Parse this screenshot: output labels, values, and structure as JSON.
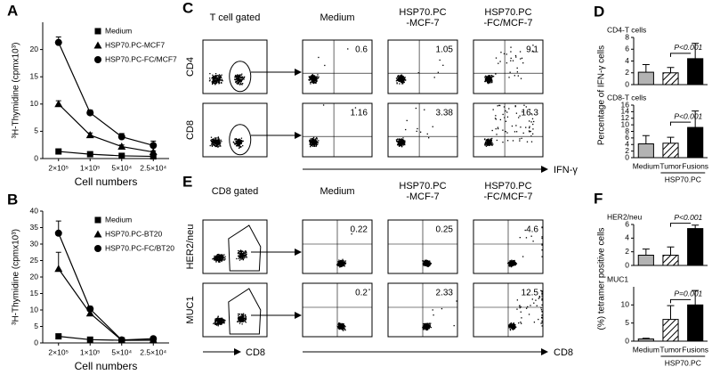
{
  "chart_data": [
    {
      "type": "line",
      "panel": "A",
      "ylabel": "³H-Thymidine (cpmx10³)",
      "xlabel": "Cell numbers",
      "categories": [
        "2×10⁵",
        "1×10⁵",
        "5×10⁴",
        "2.5×10⁴"
      ],
      "ylim": [
        0,
        25
      ],
      "yticks": [
        0,
        5,
        10,
        15,
        20
      ],
      "legend": "upper right",
      "series": [
        {
          "name": "Medium",
          "color": "#000000",
          "marker": "square",
          "values": [
            1.3,
            0.8,
            0.5,
            0.4
          ],
          "errors": [
            0.2,
            0.1,
            0.1,
            0.1
          ]
        },
        {
          "name": "HSP70.PC-MCF7",
          "color": "#000000",
          "marker": "triangle",
          "values": [
            10,
            4.3,
            2.2,
            1.2
          ],
          "errors": [
            0.6,
            0.4,
            0.3,
            0.2
          ]
        },
        {
          "name": "HSP70.PC-FC/MCF7",
          "color": "#000000",
          "marker": "circle",
          "values": [
            21.3,
            8.4,
            4,
            2.4
          ],
          "errors": [
            1,
            0.5,
            0.6,
            0.8
          ]
        }
      ]
    },
    {
      "type": "line",
      "panel": "B",
      "ylabel": "³H-Thymidine (cpmx10³)",
      "xlabel": "Cell numbers",
      "categories": [
        "2×10⁵",
        "1×10⁵",
        "5×10⁴",
        "2.5×10⁴"
      ],
      "ylim": [
        0,
        40
      ],
      "yticks": [
        0,
        5,
        10,
        15,
        20,
        25,
        30,
        35,
        40
      ],
      "legend": "upper right",
      "series": [
        {
          "name": "Medium",
          "color": "#000000",
          "marker": "square",
          "values": [
            2,
            1,
            0.8,
            0.8
          ],
          "errors": [
            0.3,
            0.1,
            0.1,
            0.1
          ]
        },
        {
          "name": "HSP70.PC-BT20",
          "color": "#000000",
          "marker": "triangle",
          "values": [
            22.5,
            9,
            0.8,
            0.9
          ],
          "errors": [
            5,
            1.2,
            0.2,
            0.2
          ]
        },
        {
          "name": "HSP70.PC-FC/BT20",
          "color": "#000000",
          "marker": "circle",
          "values": [
            33.3,
            10.3,
            0.9,
            1.3
          ],
          "errors": [
            3.7,
            0.8,
            0.2,
            0.3
          ]
        }
      ]
    },
    {
      "type": "bar",
      "panel": "D",
      "title": "CD4-T cells",
      "ylim": [
        0,
        8
      ],
      "yticks": [
        0,
        2,
        4,
        6,
        8
      ],
      "values": [
        2.1,
        2,
        4.4
      ],
      "errors": [
        1.3,
        0.9,
        2.6
      ],
      "colors": [
        "#b3b3b3",
        "#ffffff",
        "#000000"
      ],
      "patterns": [
        "solid",
        "hatched",
        "solid"
      ],
      "annotation": "P<0.001"
    },
    {
      "type": "bar",
      "title": "CD8-T cells",
      "ylabel": "Percentage of IFN-γ cells",
      "ylim": [
        0,
        16
      ],
      "yticks": [
        0,
        2,
        4,
        6,
        8,
        10,
        12,
        14,
        16
      ],
      "categories": [
        "Medium",
        "Tumor",
        "Fusions"
      ],
      "group_label": "HSP70.PC",
      "values": [
        4.2,
        4.4,
        9.2
      ],
      "errors": [
        2.5,
        1.8,
        5
      ],
      "colors": [
        "#b3b3b3",
        "#ffffff",
        "#000000"
      ],
      "patterns": [
        "solid",
        "hatched",
        "solid"
      ],
      "annotation": "P<0.001"
    },
    {
      "type": "bar",
      "panel": "F",
      "title": "HER2/neu",
      "ylim": [
        0,
        6
      ],
      "yticks": [
        0,
        2,
        4,
        6
      ],
      "values": [
        1.5,
        1.5,
        5.4
      ],
      "errors": [
        0.9,
        1.2,
        0.5
      ],
      "colors": [
        "#b3b3b3",
        "#ffffff",
        "#000000"
      ],
      "patterns": [
        "solid",
        "hatched",
        "solid"
      ],
      "annotation": "P<0.001"
    },
    {
      "type": "bar",
      "title": "MUC1",
      "ylabel": "(%) tetramer positive cells",
      "ylim": [
        0,
        15
      ],
      "yticks": [
        0,
        5,
        10
      ],
      "categories": [
        "Medium",
        "Tumor",
        "Fusions"
      ],
      "group_label": "HSP70.PC",
      "values": [
        0.6,
        6,
        10
      ],
      "errors": [
        0.2,
        3.8,
        4
      ],
      "colors": [
        "#b3b3b3",
        "#ffffff",
        "#000000"
      ],
      "patterns": [
        "solid",
        "hatched",
        "solid"
      ],
      "annotation": "P=0.001"
    }
  ],
  "flow_panels": [
    {
      "panel": "C",
      "gate_label": "T cell gated",
      "x_label": "IFN-γ",
      "columns": [
        [
          "Medium"
        ],
        [
          "HSP70.PC",
          "-MCF-7"
        ],
        [
          "HSP70.PC",
          "-FC/MCF-7"
        ]
      ],
      "rows": [
        {
          "label": "CD4",
          "values": [
            0.6,
            1.05,
            9.1
          ]
        },
        {
          "label": "CD8",
          "values": [
            1.16,
            3.38,
            16.3
          ]
        }
      ]
    },
    {
      "panel": "E",
      "gate_label": "CD8 gated",
      "gate_x_label": "CD8",
      "x_label": "CD8",
      "columns": [
        [
          "Medium"
        ],
        [
          "HSP70.PC",
          "-MCF-7"
        ],
        [
          "HSP70.PC",
          "-FC/MCF-7"
        ]
      ],
      "rows": [
        {
          "label": "HER2/neu",
          "values": [
            0.22,
            0.25,
            4.6
          ]
        },
        {
          "label": "MUC1",
          "values": [
            0.2,
            2.33,
            12.5
          ]
        }
      ]
    }
  ]
}
